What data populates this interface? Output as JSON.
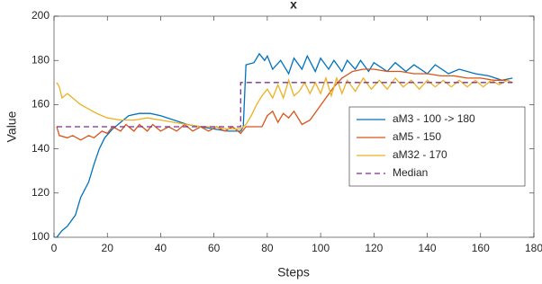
{
  "chart_data": {
    "type": "line",
    "title": "x",
    "xlabel": "Steps",
    "ylabel": "Value",
    "xlim": [
      0,
      180
    ],
    "xticks": [
      0,
      20,
      40,
      60,
      80,
      100,
      120,
      140,
      160,
      180
    ],
    "ylim": [
      100,
      200
    ],
    "yticks": [
      100,
      120,
      140,
      160,
      180,
      200
    ],
    "legend": "east",
    "series": [
      {
        "name": "aM3 - 100 -> 180",
        "color": "#0072BD",
        "line_style": "solid",
        "x": [
          1,
          3,
          5,
          8,
          10,
          13,
          15,
          17,
          19,
          22,
          25,
          28,
          32,
          36,
          40,
          45,
          50,
          55,
          60,
          65,
          70,
          71,
          72,
          75,
          77,
          79,
          80,
          82,
          85,
          88,
          90,
          93,
          95,
          98,
          100,
          103,
          105,
          108,
          110,
          113,
          115,
          118,
          120,
          125,
          128,
          132,
          135,
          140,
          143,
          148,
          152,
          158,
          163,
          168,
          172
        ],
        "values": [
          100,
          103,
          105,
          110,
          118,
          125,
          133,
          140,
          145,
          149,
          152,
          155,
          156,
          156,
          155,
          153,
          151,
          150,
          149,
          148,
          148,
          150,
          178,
          179,
          183,
          180,
          182,
          176,
          180,
          174,
          181,
          176,
          182,
          175,
          181,
          176,
          180,
          175,
          180,
          176,
          180,
          175,
          179,
          175,
          179,
          175,
          178,
          174,
          178,
          174,
          176,
          174,
          173,
          171,
          172
        ]
      },
      {
        "name": "aM5 - 150",
        "color": "#D95319",
        "line_style": "solid",
        "x": [
          1,
          2,
          5,
          7,
          10,
          13,
          15,
          18,
          20,
          22,
          25,
          27,
          30,
          32,
          35,
          37,
          40,
          43,
          46,
          49,
          52,
          55,
          58,
          61,
          64,
          67,
          70,
          72,
          75,
          78,
          80,
          82,
          84,
          86,
          88,
          90,
          93,
          96,
          99,
          102,
          105,
          108,
          112,
          116,
          120,
          125,
          130,
          135,
          140,
          145,
          150,
          155,
          160,
          165,
          170,
          172
        ],
        "values": [
          150,
          146,
          145,
          146,
          144,
          146,
          145,
          148,
          147,
          150,
          148,
          151,
          148,
          151,
          148,
          151,
          148,
          150,
          148,
          151,
          148,
          150,
          148,
          150,
          148,
          150,
          147,
          150,
          150,
          150,
          155,
          157,
          152,
          156,
          154,
          157,
          151,
          153,
          158,
          163,
          168,
          172,
          175,
          176,
          176,
          175,
          175,
          174,
          174,
          173,
          173,
          172,
          172,
          171,
          171,
          170
        ]
      },
      {
        "name": "aM32 - 170",
        "color": "#EDB120",
        "line_style": "solid",
        "x": [
          1,
          2,
          3,
          5,
          8,
          10,
          13,
          16,
          20,
          25,
          30,
          35,
          40,
          45,
          50,
          55,
          60,
          65,
          70,
          72,
          74,
          76,
          78,
          80,
          82,
          84,
          86,
          88,
          90,
          92,
          94,
          96,
          98,
          100,
          102,
          104,
          106,
          108,
          110,
          113,
          116,
          119,
          122,
          125,
          128,
          131,
          134,
          137,
          140,
          143,
          146,
          149,
          152,
          155,
          158,
          161,
          164,
          167,
          170,
          172
        ],
        "values": [
          170,
          168,
          163,
          165,
          162,
          160,
          158,
          156,
          154,
          153,
          153,
          154,
          153,
          152,
          151,
          150,
          150,
          149,
          149,
          151,
          155,
          160,
          164,
          167,
          163,
          169,
          163,
          171,
          164,
          166,
          170,
          165,
          170,
          165,
          172,
          164,
          172,
          165,
          171,
          166,
          172,
          167,
          171,
          167,
          172,
          168,
          171,
          167,
          171,
          168,
          171,
          168,
          171,
          168,
          171,
          168,
          171,
          169,
          171,
          170
        ]
      },
      {
        "name": "Median",
        "color": "#7E2F8E",
        "line_style": "dashed",
        "x": [
          1,
          70,
          70,
          172
        ],
        "values": [
          150,
          150,
          170,
          170
        ]
      }
    ]
  }
}
